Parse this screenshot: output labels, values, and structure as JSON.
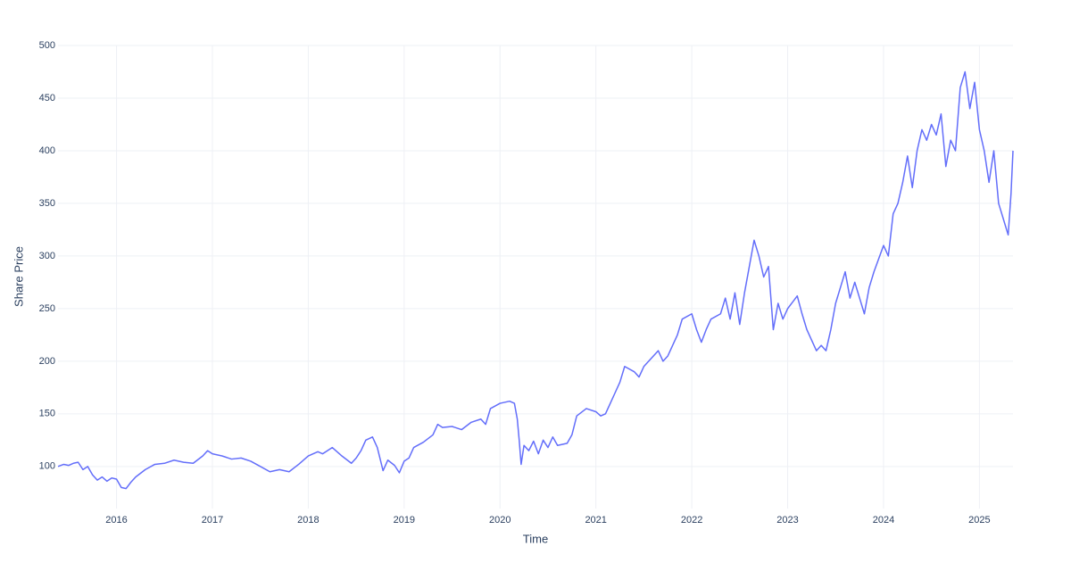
{
  "chart_data": {
    "type": "line",
    "x_label": "Time",
    "y_label": "Share Price",
    "color": "#636efa",
    "grid": true,
    "xlim": [
      2015.39,
      2025.35
    ],
    "ylim": [
      60,
      500
    ],
    "xticks": [
      2016,
      2017,
      2018,
      2019,
      2020,
      2021,
      2022,
      2023,
      2024,
      2025
    ],
    "yticks": [
      100,
      150,
      200,
      250,
      300,
      350,
      400,
      450,
      500
    ],
    "x": [
      2015.39,
      2015.45,
      2015.5,
      2015.55,
      2015.6,
      2015.65,
      2015.7,
      2015.75,
      2015.8,
      2015.85,
      2015.9,
      2015.95,
      2016.0,
      2016.05,
      2016.1,
      2016.15,
      2016.2,
      2016.3,
      2016.4,
      2016.5,
      2016.6,
      2016.7,
      2016.8,
      2016.9,
      2016.95,
      2017.0,
      2017.1,
      2017.2,
      2017.3,
      2017.4,
      2017.5,
      2017.6,
      2017.7,
      2017.8,
      2017.9,
      2018.0,
      2018.1,
      2018.15,
      2018.25,
      2018.35,
      2018.45,
      2018.5,
      2018.55,
      2018.6,
      2018.67,
      2018.72,
      2018.78,
      2018.83,
      2018.9,
      2018.95,
      2019.0,
      2019.05,
      2019.1,
      2019.2,
      2019.3,
      2019.35,
      2019.4,
      2019.5,
      2019.6,
      2019.7,
      2019.8,
      2019.85,
      2019.9,
      2020.0,
      2020.1,
      2020.15,
      2020.18,
      2020.2,
      2020.22,
      2020.25,
      2020.3,
      2020.35,
      2020.4,
      2020.45,
      2020.5,
      2020.55,
      2020.6,
      2020.7,
      2020.75,
      2020.8,
      2020.9,
      2021.0,
      2021.05,
      2021.1,
      2021.15,
      2021.2,
      2021.25,
      2021.3,
      2021.4,
      2021.45,
      2021.5,
      2021.55,
      2021.65,
      2021.7,
      2021.75,
      2021.85,
      2021.9,
      2022.0,
      2022.05,
      2022.1,
      2022.15,
      2022.2,
      2022.3,
      2022.35,
      2022.4,
      2022.45,
      2022.5,
      2022.55,
      2022.6,
      2022.65,
      2022.7,
      2022.75,
      2022.8,
      2022.85,
      2022.9,
      2022.95,
      2023.0,
      2023.1,
      2023.15,
      2023.2,
      2023.25,
      2023.3,
      2023.35,
      2023.4,
      2023.45,
      2023.5,
      2023.55,
      2023.6,
      2023.65,
      2023.7,
      2023.75,
      2023.8,
      2023.85,
      2023.9,
      2024.0,
      2024.05,
      2024.1,
      2024.15,
      2024.2,
      2024.25,
      2024.3,
      2024.35,
      2024.4,
      2024.45,
      2024.5,
      2024.55,
      2024.6,
      2024.65,
      2024.7,
      2024.75,
      2024.8,
      2024.85,
      2024.9,
      2024.95,
      2025.0,
      2025.05,
      2025.1,
      2025.15,
      2025.2,
      2025.25,
      2025.3,
      2025.33,
      2025.35
    ],
    "values": [
      100,
      102,
      101,
      103,
      104,
      97,
      100,
      92,
      87,
      90,
      86,
      89,
      88,
      80,
      79,
      85,
      90,
      97,
      102,
      103,
      106,
      104,
      103,
      110,
      115,
      112,
      110,
      107,
      108,
      105,
      100,
      95,
      97,
      95,
      102,
      110,
      114,
      112,
      118,
      110,
      103,
      108,
      115,
      125,
      128,
      118,
      96,
      106,
      101,
      94,
      105,
      108,
      118,
      123,
      130,
      140,
      137,
      138,
      135,
      142,
      145,
      140,
      155,
      160,
      162,
      160,
      145,
      125,
      102,
      120,
      115,
      124,
      112,
      125,
      118,
      128,
      120,
      122,
      130,
      148,
      155,
      152,
      148,
      150,
      160,
      170,
      180,
      195,
      190,
      185,
      195,
      200,
      210,
      200,
      205,
      225,
      240,
      245,
      230,
      218,
      230,
      240,
      245,
      260,
      240,
      265,
      235,
      265,
      290,
      315,
      300,
      280,
      290,
      230,
      255,
      240,
      250,
      262,
      245,
      230,
      220,
      210,
      215,
      210,
      230,
      255,
      270,
      285,
      260,
      275,
      260,
      245,
      270,
      285,
      310,
      300,
      340,
      350,
      370,
      395,
      365,
      400,
      420,
      410,
      425,
      415,
      435,
      385,
      410,
      400,
      460,
      475,
      440,
      465,
      420,
      400,
      370,
      400,
      350,
      335,
      320,
      360,
      400
    ]
  }
}
